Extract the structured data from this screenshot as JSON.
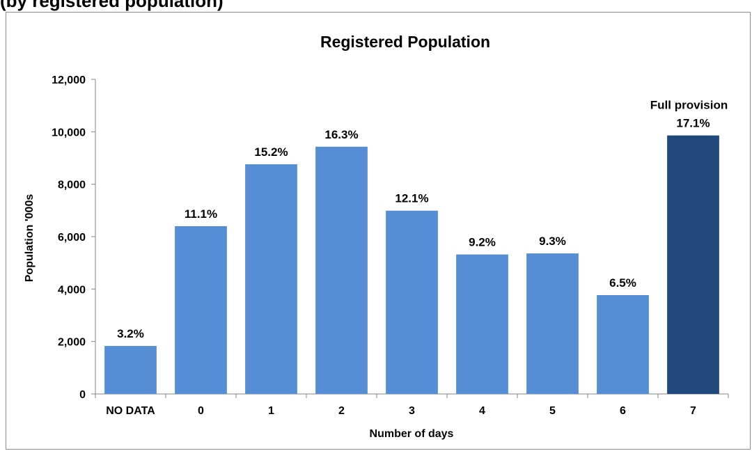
{
  "page_heading": "(by registered population)",
  "chart_data": {
    "type": "bar",
    "title": "Registered Population",
    "xlabel": "Number of days",
    "ylabel": "Population '000s",
    "ylim": [
      0,
      12000
    ],
    "yticks": [
      0,
      2000,
      4000,
      6000,
      8000,
      10000,
      12000
    ],
    "ytick_labels": [
      "0",
      "2,000",
      "4,000",
      "6,000",
      "8,000",
      "10,000",
      "12,000"
    ],
    "grid": false,
    "legend": "none",
    "categories": [
      "NO DATA",
      "0",
      "1",
      "2",
      "3",
      "4",
      "5",
      "6",
      "7"
    ],
    "values": [
      1830,
      6400,
      8760,
      9430,
      6990,
      5320,
      5360,
      3770,
      9860
    ],
    "data_labels": [
      "3.2%",
      "11.1%",
      "15.2%",
      "16.3%",
      "12.1%",
      "9.2%",
      "9.3%",
      "6.5%",
      "17.1%"
    ],
    "annotation": "Full provision",
    "colors": {
      "bar": "#558ed5",
      "highlight": "#1f497d"
    }
  }
}
